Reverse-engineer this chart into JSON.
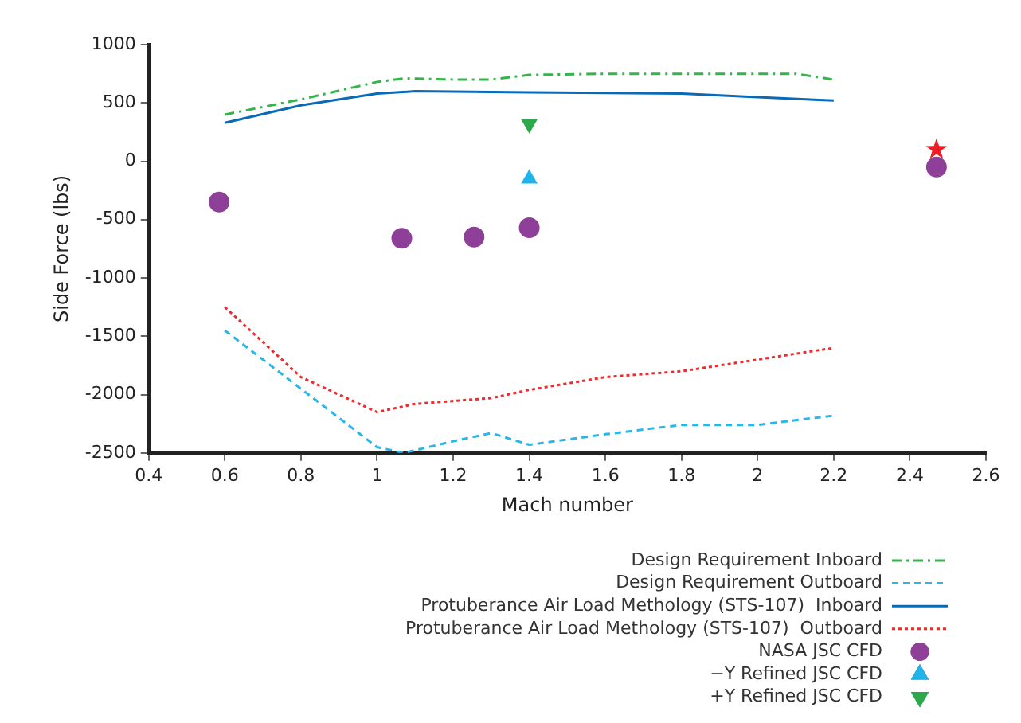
{
  "chart_data": {
    "type": "line",
    "xlabel": "Mach number",
    "ylabel": "Side Force (lbs)",
    "xlim": [
      0.4,
      2.6
    ],
    "xticks": [
      0.4,
      0.6,
      0.8,
      1,
      1.2,
      1.4,
      1.6,
      1.8,
      2,
      2.2,
      2.4,
      2.6
    ],
    "ylim": [
      -2500,
      1000
    ],
    "yticks": [
      -2500,
      -2000,
      -1500,
      -1000,
      -500,
      0,
      500,
      1000
    ],
    "grid": false,
    "legend": "bottom right",
    "series": [
      {
        "name": "Design Requirement Inboard",
        "type": "line",
        "color": "#33b54a",
        "line_style": "dashdot",
        "marker": "none",
        "x": [
          0.6,
          0.8,
          1.0,
          1.07,
          1.2,
          1.3,
          1.4,
          1.6,
          1.8,
          2.0,
          2.1,
          2.2
        ],
        "values": [
          400,
          530,
          680,
          710,
          700,
          700,
          740,
          750,
          750,
          750,
          750,
          700
        ]
      },
      {
        "name": "Design Requirement Outboard",
        "type": "line",
        "color": "#29b6e8",
        "line_style": "dashed",
        "marker": "none",
        "x": [
          0.6,
          0.8,
          1.0,
          1.07,
          1.2,
          1.3,
          1.4,
          1.6,
          1.8,
          2.0,
          2.2
        ],
        "values": [
          -1450,
          -1950,
          -2450,
          -2500,
          -2400,
          -2330,
          -2430,
          -2340,
          -2260,
          -2260,
          -2180
        ]
      },
      {
        "name": "Protuberance Air Load Methology (STS-107)  Inboard",
        "type": "line",
        "color": "#0a6ab5",
        "line_style": "solid",
        "marker": "none",
        "x": [
          0.6,
          0.8,
          1.0,
          1.1,
          1.4,
          1.8,
          2.0,
          2.2
        ],
        "values": [
          330,
          480,
          580,
          600,
          590,
          580,
          550,
          520
        ]
      },
      {
        "name": "Protuberance Air Load Methology (STS-107)  Outboard",
        "type": "line",
        "color": "#ee2b2f",
        "line_style": "dotted",
        "marker": "none",
        "x": [
          0.6,
          0.8,
          1.0,
          1.1,
          1.3,
          1.4,
          1.6,
          1.8,
          2.0,
          2.2
        ],
        "values": [
          -1250,
          -1850,
          -2150,
          -2080,
          -2030,
          -1960,
          -1850,
          -1800,
          -1700,
          -1600
        ]
      },
      {
        "name": "NASA JSC CFD",
        "type": "scatter",
        "color": "#8e3f98",
        "marker": "circle",
        "x": [
          0.585,
          1.065,
          1.255,
          1.4,
          2.47
        ],
        "values": [
          -350,
          -660,
          -650,
          -570,
          -50
        ]
      },
      {
        "name": "−Y Refined JSC CFD",
        "type": "scatter",
        "color": "#1fb4ea",
        "marker": "triangle",
        "x": [
          1.4
        ],
        "values": [
          -150
        ]
      },
      {
        "name": "+Y Refined JSC CFD",
        "type": "scatter",
        "color": "#2da84a",
        "marker": "triangle_down",
        "x": [
          1.4
        ],
        "values": [
          320
        ]
      },
      {
        "type": "scatter",
        "color": "#ee1c25",
        "marker": "star",
        "x": [
          2.47
        ],
        "values": [
          100
        ]
      }
    ]
  }
}
